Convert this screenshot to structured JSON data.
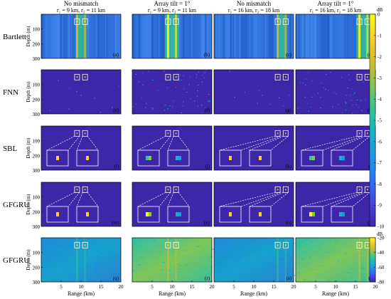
{
  "chart_data": {
    "type": "heatmap",
    "column_headers": [
      {
        "line1": "No mismatch",
        "line2": "r₁ = 9 km, r₂ = 11 km"
      },
      {
        "line1": "Array tilt = 1°",
        "line2": "r₁ = 9 km, r₂ = 11 km"
      },
      {
        "line1": "No mismatch",
        "line2": "r₁ = 16 km, r₂ = 18 km"
      },
      {
        "line1": "Array tilt = 1°",
        "line2": "r₁ = 16 km, r₂ = 18 km"
      }
    ],
    "rows": [
      {
        "label": "Bartlett",
        "insets": false,
        "style": "bartlett"
      },
      {
        "label": "FNN",
        "insets": false,
        "style": "sparse"
      },
      {
        "label": "SBL",
        "insets": true,
        "style": "sparse"
      },
      {
        "label": "GFGRU",
        "insets": true,
        "style": "sparse"
      },
      {
        "label": "GFGRU",
        "insets": false,
        "style": "noise"
      }
    ],
    "panel_letters": [
      "(a)",
      "(b)",
      "(c)",
      "(d)",
      "(e)",
      "(f)",
      "(g)",
      "(h)",
      "(i)",
      "(j)",
      "(k)",
      "(l)",
      "(m)",
      "(n)",
      "(o)",
      "(p)",
      "(q)",
      "(r)",
      "(s)",
      "(t)"
    ],
    "sources": [
      {
        "r1": 9,
        "r2": 11,
        "depth": 50
      },
      {
        "r1": 9,
        "r2": 11,
        "depth": 50
      },
      {
        "r1": 16,
        "r2": 18,
        "depth": 50
      },
      {
        "r1": 16,
        "r2": 18,
        "depth": 50
      }
    ],
    "xlabel": "Range (km)",
    "ylabel": "Depth (m)",
    "xlim": [
      0,
      20
    ],
    "ylim": [
      300,
      0
    ],
    "xticks": [
      5,
      10,
      15,
      20
    ],
    "yticks": [
      100,
      200,
      300
    ],
    "colorbar_top": {
      "unit": "dB",
      "ticks": [
        0,
        -1,
        -2,
        -3,
        -4,
        -5,
        -6,
        -7,
        -8,
        -9,
        -10
      ],
      "range": [
        -10,
        0
      ]
    },
    "colorbar_bottom": {
      "unit": "dB",
      "ticks": [
        -20,
        -40,
        -60,
        -80
      ],
      "range": [
        -80,
        -20
      ]
    },
    "colormap": [
      "#3e26a8",
      "#4743e0",
      "#2c73fd",
      "#1c97e6",
      "#11b5c8",
      "#35c491",
      "#8ac54f",
      "#d5bb2a",
      "#fcce2e",
      "#f9fb15"
    ]
  }
}
